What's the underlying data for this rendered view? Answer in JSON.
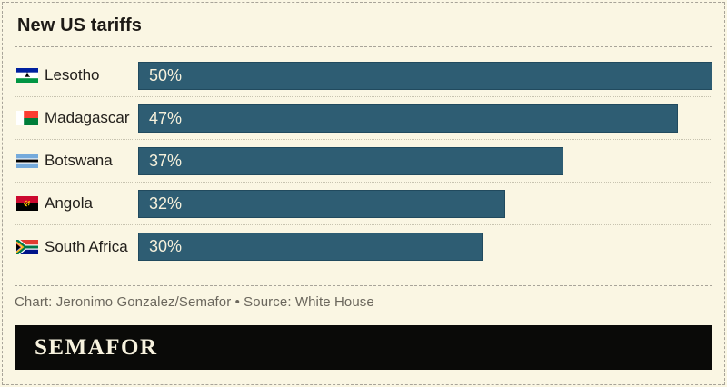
{
  "title": "New US tariffs",
  "chart_data": {
    "type": "bar",
    "orientation": "horizontal",
    "title": "New US tariffs",
    "categories": [
      "Lesotho",
      "Madagascar",
      "Botswana",
      "Angola",
      "South Africa"
    ],
    "values": [
      50,
      47,
      37,
      32,
      30
    ],
    "value_labels": [
      "50%",
      "47%",
      "37%",
      "32%",
      "30%"
    ],
    "xlim": [
      0,
      50
    ],
    "grid": false,
    "legend": false,
    "bar_color": "#2E5D73"
  },
  "rows": [
    {
      "country": "Lesotho",
      "value": 50,
      "value_label": "50%",
      "flag": "lesotho-flag"
    },
    {
      "country": "Madagascar",
      "value": 47,
      "value_label": "47%",
      "flag": "madagascar-flag"
    },
    {
      "country": "Botswana",
      "value": 37,
      "value_label": "37%",
      "flag": "botswana-flag"
    },
    {
      "country": "Angola",
      "value": 32,
      "value_label": "32%",
      "flag": "angola-flag"
    },
    {
      "country": "South Africa",
      "value": 30,
      "value_label": "30%",
      "flag": "south-africa-flag"
    }
  ],
  "credit": "Chart: Jeronimo Gonzalez/Semafor • Source: White House",
  "brand": {
    "wordmark": "SEMAFOR"
  },
  "colors": {
    "background": "#FAF6E3",
    "bar": "#2E5D73",
    "bar_label": "#F6F1DC",
    "banner": "#0A0A08"
  }
}
